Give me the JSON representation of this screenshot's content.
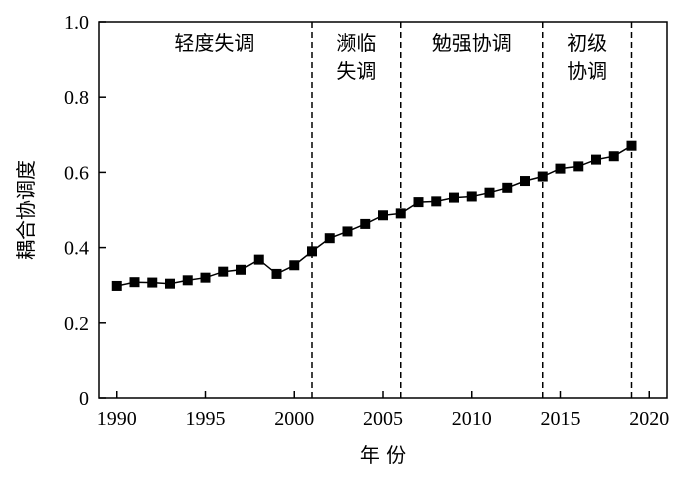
{
  "chart_data": {
    "type": "line",
    "xlabel": "年 份",
    "ylabel": "耦合协调度",
    "xlim": [
      1989,
      2021
    ],
    "ylim": [
      0,
      1.0
    ],
    "x_ticks": [
      1990,
      1995,
      2000,
      2005,
      2010,
      2015,
      2020
    ],
    "y_ticks": [
      0,
      0.2,
      0.4,
      0.6,
      0.8,
      1.0
    ],
    "y_tick_labels": [
      "0",
      "0.2",
      "0.4",
      "0.6",
      "0.8",
      "1.0"
    ],
    "grid": false,
    "marker": "square",
    "series": [
      {
        "x": [
          1990,
          1991,
          1992,
          1993,
          1994,
          1995,
          1996,
          1997,
          1998,
          1999,
          2000,
          2001,
          2002,
          2003,
          2004,
          2005,
          2006,
          2007,
          2008,
          2009,
          2010,
          2011,
          2012,
          2013,
          2014,
          2015,
          2016,
          2017,
          2018,
          2019
        ],
        "values": [
          0.298,
          0.308,
          0.307,
          0.304,
          0.313,
          0.32,
          0.336,
          0.341,
          0.368,
          0.33,
          0.353,
          0.39,
          0.425,
          0.443,
          0.463,
          0.486,
          0.491,
          0.521,
          0.523,
          0.533,
          0.536,
          0.546,
          0.559,
          0.577,
          0.589,
          0.61,
          0.616,
          0.634,
          0.643,
          0.671
        ]
      }
    ],
    "dividers": [
      2001,
      2006,
      2014,
      2019
    ],
    "phases": [
      {
        "lines": [
          "轻度失调"
        ],
        "x": 1995.5
      },
      {
        "lines": [
          "濒临",
          "失调"
        ],
        "x": 2003.5
      },
      {
        "lines": [
          "勉强协调"
        ],
        "x": 2010
      },
      {
        "lines": [
          "初级",
          "协调"
        ],
        "x": 2016.5
      }
    ],
    "colors": {
      "line": "#000000",
      "marker": "#000000"
    }
  }
}
